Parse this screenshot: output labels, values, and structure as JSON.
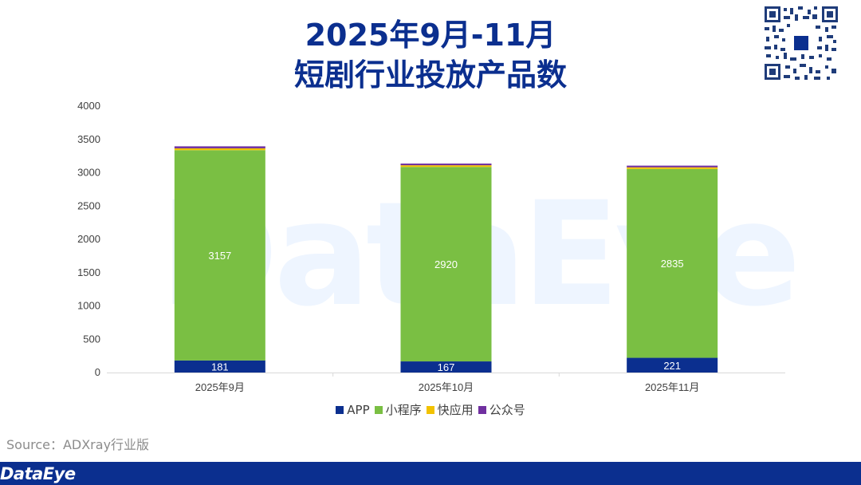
{
  "title_line1": "2025年9月-11月",
  "title_line2": "短剧行业投放产品数",
  "source": "Source：ADXray行业版",
  "brand": "DataEye",
  "chart_data": {
    "type": "bar",
    "stacked": true,
    "categories": [
      "2025年9月",
      "2025年10月",
      "2025年11月"
    ],
    "series": [
      {
        "name": "APP",
        "values": [
          181,
          167,
          221
        ],
        "color": "#0b2f8f"
      },
      {
        "name": "小程序",
        "values": [
          3157,
          2920,
          2835
        ],
        "color": "#7abf43"
      },
      {
        "name": "快应用",
        "values": [
          28,
          25,
          25
        ],
        "color": "#f2c200"
      },
      {
        "name": "公众号",
        "values": [
          30,
          25,
          25
        ],
        "color": "#7030a0"
      }
    ],
    "data_labels": {
      "APP": [
        181,
        167,
        221
      ],
      "小程序": [
        3157,
        2920,
        2835
      ]
    },
    "ylim": [
      0,
      4000
    ],
    "yticks": [
      0,
      500,
      1000,
      1500,
      2000,
      2500,
      3000,
      3500,
      4000
    ],
    "legend_position": "bottom",
    "grid": false
  }
}
